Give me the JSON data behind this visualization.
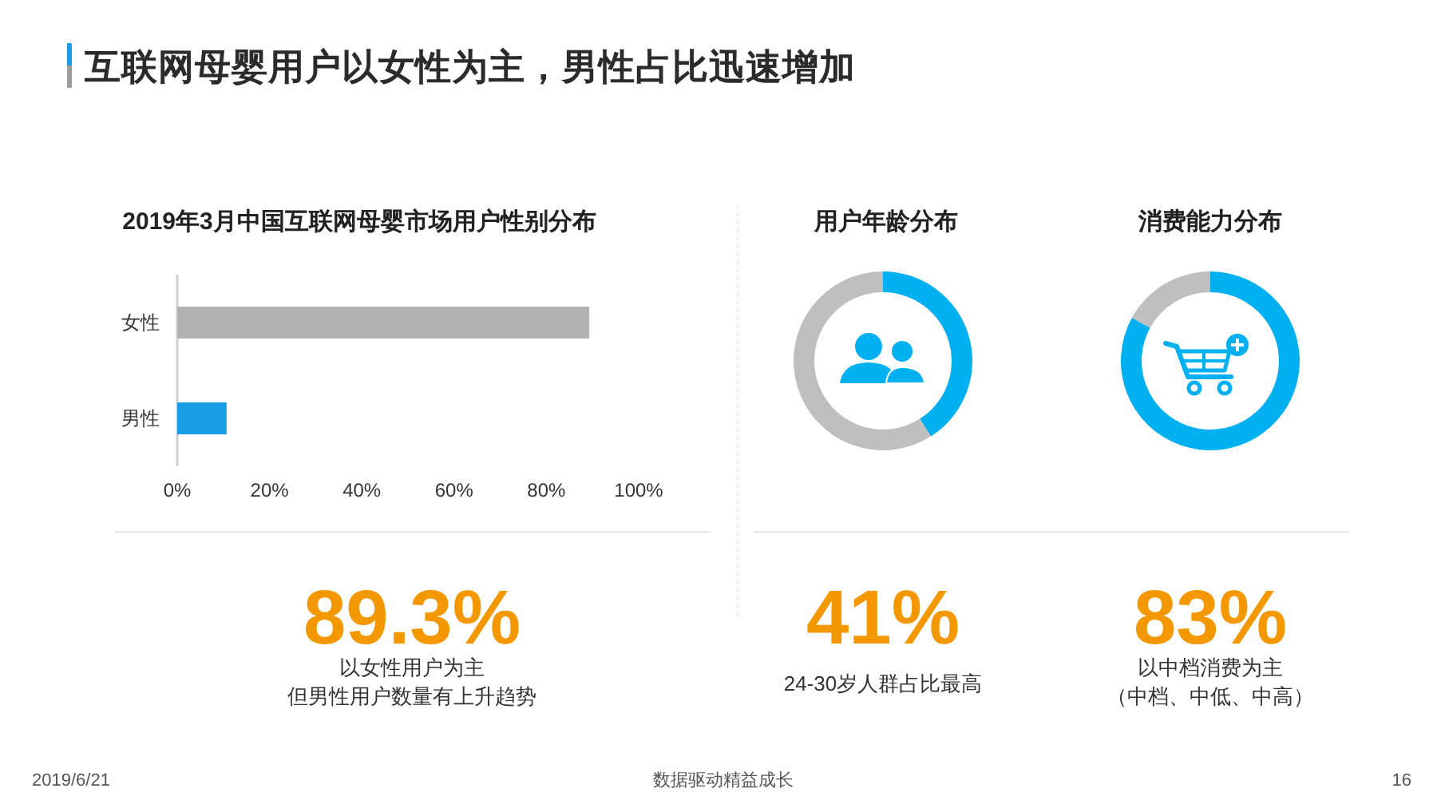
{
  "chart_data": [
    {
      "type": "other",
      "title": "互联网母婴用户以女性为主，男性占比迅速增加",
      "annotations": [
        "2019/6/21",
        "数据驱动精益成长",
        "16"
      ]
    },
    {
      "type": "bar",
      "orientation": "horizontal",
      "title": "2019年3月中国互联网母婴市场用户性别分布",
      "categories": [
        "女性",
        "男性"
      ],
      "values": [
        89.3,
        10.7
      ],
      "colors": [
        "#b3b3b3",
        "#1a9ee6"
      ],
      "xlim": [
        0,
        100
      ],
      "xticks": [
        {
          "value": 0,
          "label": "0%"
        },
        {
          "value": 20,
          "label": "20%"
        },
        {
          "value": 40,
          "label": "40%"
        },
        {
          "value": 60,
          "label": "60%"
        },
        {
          "value": 80,
          "label": "80%"
        },
        {
          "value": 100,
          "label": "100%"
        }
      ],
      "annotations": [
        "89.3%",
        "以女性用户为主",
        "但男性用户数量有上升趋势"
      ]
    },
    {
      "type": "donut",
      "title": "用户年龄分布",
      "categories": [
        null,
        null
      ],
      "values": [
        41,
        59
      ],
      "colors": [
        "#00b0f0",
        "#bfbfbf"
      ],
      "annotations": [
        "41%",
        "24-30岁人群占比最高"
      ]
    },
    {
      "type": "donut",
      "title": "消费能力分布",
      "categories": [
        null,
        null
      ],
      "values": [
        83,
        17
      ],
      "colors": [
        "#00b0f0",
        "#bfbfbf"
      ],
      "annotations": [
        "83%",
        "以中档消费为主",
        "（中档、中低、中高）"
      ]
    }
  ]
}
